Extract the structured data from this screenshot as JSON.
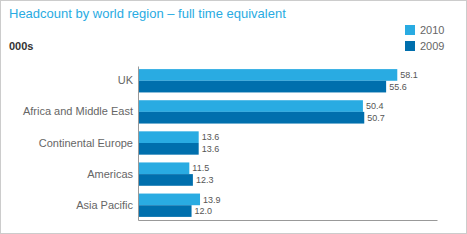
{
  "chart_data": {
    "type": "bar",
    "orientation": "horizontal",
    "title": "Headcount by world region – full time equivalent",
    "subtitle": "000s",
    "categories": [
      "UK",
      "Africa and Middle East",
      "Continental Europe",
      "Americas",
      "Asia Pacific"
    ],
    "series": [
      {
        "name": "2010",
        "color": "#29ABE2",
        "values": [
          58.1,
          50.4,
          13.6,
          11.5,
          13.9
        ],
        "value_labels": [
          "58.1",
          "50.4",
          "13.6",
          "11.5",
          "13.9"
        ]
      },
      {
        "name": "2009",
        "color": "#006FAD",
        "values": [
          55.6,
          50.7,
          13.6,
          12.3,
          12.0
        ],
        "value_labels": [
          "55.6",
          "50.7",
          "13.6",
          "12.3",
          "12.0"
        ]
      }
    ],
    "xlim": [
      0,
      67
    ],
    "data_labels": true,
    "legend": "upper right",
    "tick_labels": "y"
  }
}
